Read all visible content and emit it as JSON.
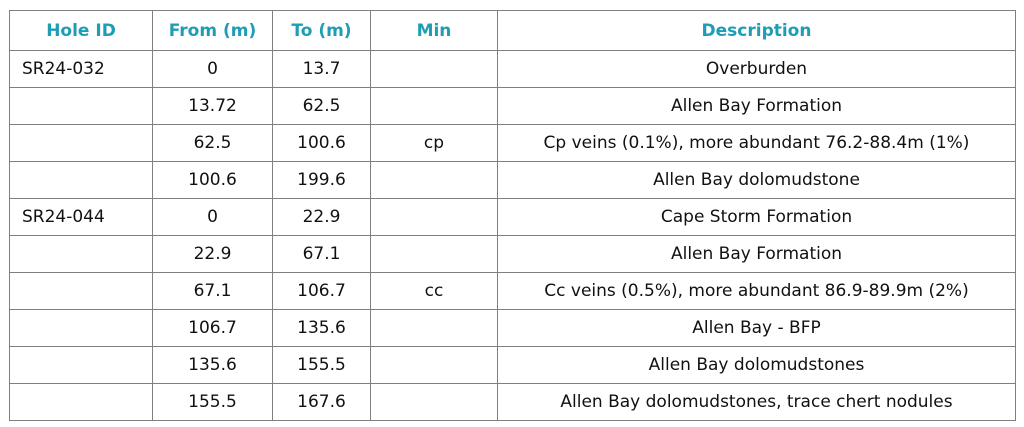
{
  "table": {
    "columns": [
      "Hole ID",
      "From (m)",
      "To (m)",
      "Min",
      "Description"
    ],
    "rows": [
      [
        "SR24-032",
        "0",
        "13.7",
        null,
        "Overburden"
      ],
      [
        null,
        "13.72",
        "62.5",
        null,
        "Allen Bay Formation"
      ],
      [
        null,
        "62.5",
        "100.6",
        "cp",
        "Cp veins (0.1%), more abundant 76.2-88.4m (1%)"
      ],
      [
        null,
        "100.6",
        "199.6",
        null,
        "Allen Bay dolomudstone"
      ],
      [
        "SR24-044",
        "0",
        "22.9",
        null,
        "Cape Storm Formation"
      ],
      [
        null,
        "22.9",
        "67.1",
        null,
        "Allen Bay Formation"
      ],
      [
        null,
        "67.1",
        "106.7",
        "cc",
        "Cc veins (0.5%), more abundant 86.9-89.9m (2%)"
      ],
      [
        null,
        "106.7",
        "135.6",
        null,
        "Allen Bay - BFP"
      ],
      [
        null,
        "135.6",
        "155.5",
        null,
        "Allen Bay dolomudstones"
      ],
      [
        null,
        "155.5",
        "167.6",
        null,
        "Allen Bay dolomudstones, trace chert nodules"
      ]
    ]
  }
}
